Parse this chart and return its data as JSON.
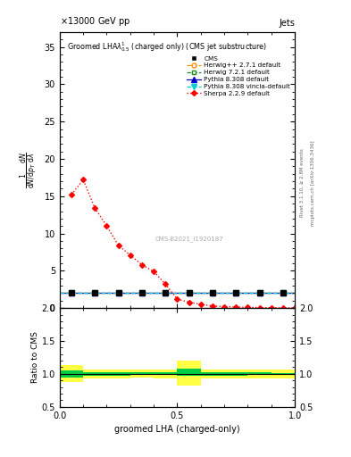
{
  "sherpa_x": [
    0.05,
    0.1,
    0.15,
    0.2,
    0.25,
    0.3,
    0.35,
    0.4,
    0.45,
    0.5,
    0.55,
    0.6,
    0.65,
    0.7,
    0.75,
    0.8,
    0.85,
    0.9,
    0.95,
    1.0
  ],
  "sherpa_y": [
    15.2,
    17.2,
    13.4,
    11.0,
    8.4,
    7.1,
    5.8,
    4.9,
    3.2,
    1.2,
    0.8,
    0.5,
    0.3,
    0.2,
    0.15,
    0.1,
    0.08,
    0.05,
    0.03,
    0.02
  ],
  "flat_x": [
    0.0,
    0.1,
    0.2,
    0.3,
    0.4,
    0.5,
    0.6,
    0.7,
    0.8,
    0.9,
    1.0
  ],
  "flat_y": [
    2.0,
    2.0,
    2.0,
    2.0,
    2.0,
    2.0,
    2.0,
    2.0,
    2.0,
    2.0,
    2.0
  ],
  "ratio_x_edges": [
    0.0,
    0.1,
    0.2,
    0.3,
    0.4,
    0.5,
    0.6,
    0.7,
    0.8,
    0.9,
    1.0
  ],
  "ratio_green_lo": [
    0.95,
    0.97,
    0.97,
    0.98,
    0.98,
    0.97,
    0.97,
    0.97,
    0.98,
    0.99
  ],
  "ratio_green_hi": [
    1.05,
    1.03,
    1.03,
    1.02,
    1.02,
    1.08,
    1.03,
    1.03,
    1.02,
    1.01
  ],
  "ratio_yellow_lo": [
    0.87,
    0.93,
    0.93,
    0.94,
    0.93,
    0.82,
    0.93,
    0.93,
    0.93,
    0.93
  ],
  "ratio_yellow_hi": [
    1.13,
    1.07,
    1.07,
    1.06,
    1.07,
    1.2,
    1.07,
    1.07,
    1.07,
    1.07
  ],
  "main_ylim": [
    0,
    37
  ],
  "ratio_ylim": [
    0.5,
    2.0
  ],
  "xlim": [
    0,
    1
  ],
  "color_sherpa": "#ff0000",
  "color_herwig": "#ff8c00",
  "color_herwig72": "#228b22",
  "color_pythia": "#0000cd",
  "color_pythia_vincia": "#00ced1",
  "color_cms": "#000000",
  "color_green_band": "#00cc44",
  "color_yellow_band": "#ffff44",
  "xlabel": "groomed LHA (charged-only)",
  "ylabel_ratio": "Ratio to CMS",
  "top_left": "13000 GeV pp",
  "top_right": "Jets",
  "cms_watermark": "CMS-B2021_I1920187",
  "right_label1": "Rivet 3.1.10, ≥ 2.8M events",
  "right_label2": "mcplots.cern.ch [arXiv:1306.3436]"
}
